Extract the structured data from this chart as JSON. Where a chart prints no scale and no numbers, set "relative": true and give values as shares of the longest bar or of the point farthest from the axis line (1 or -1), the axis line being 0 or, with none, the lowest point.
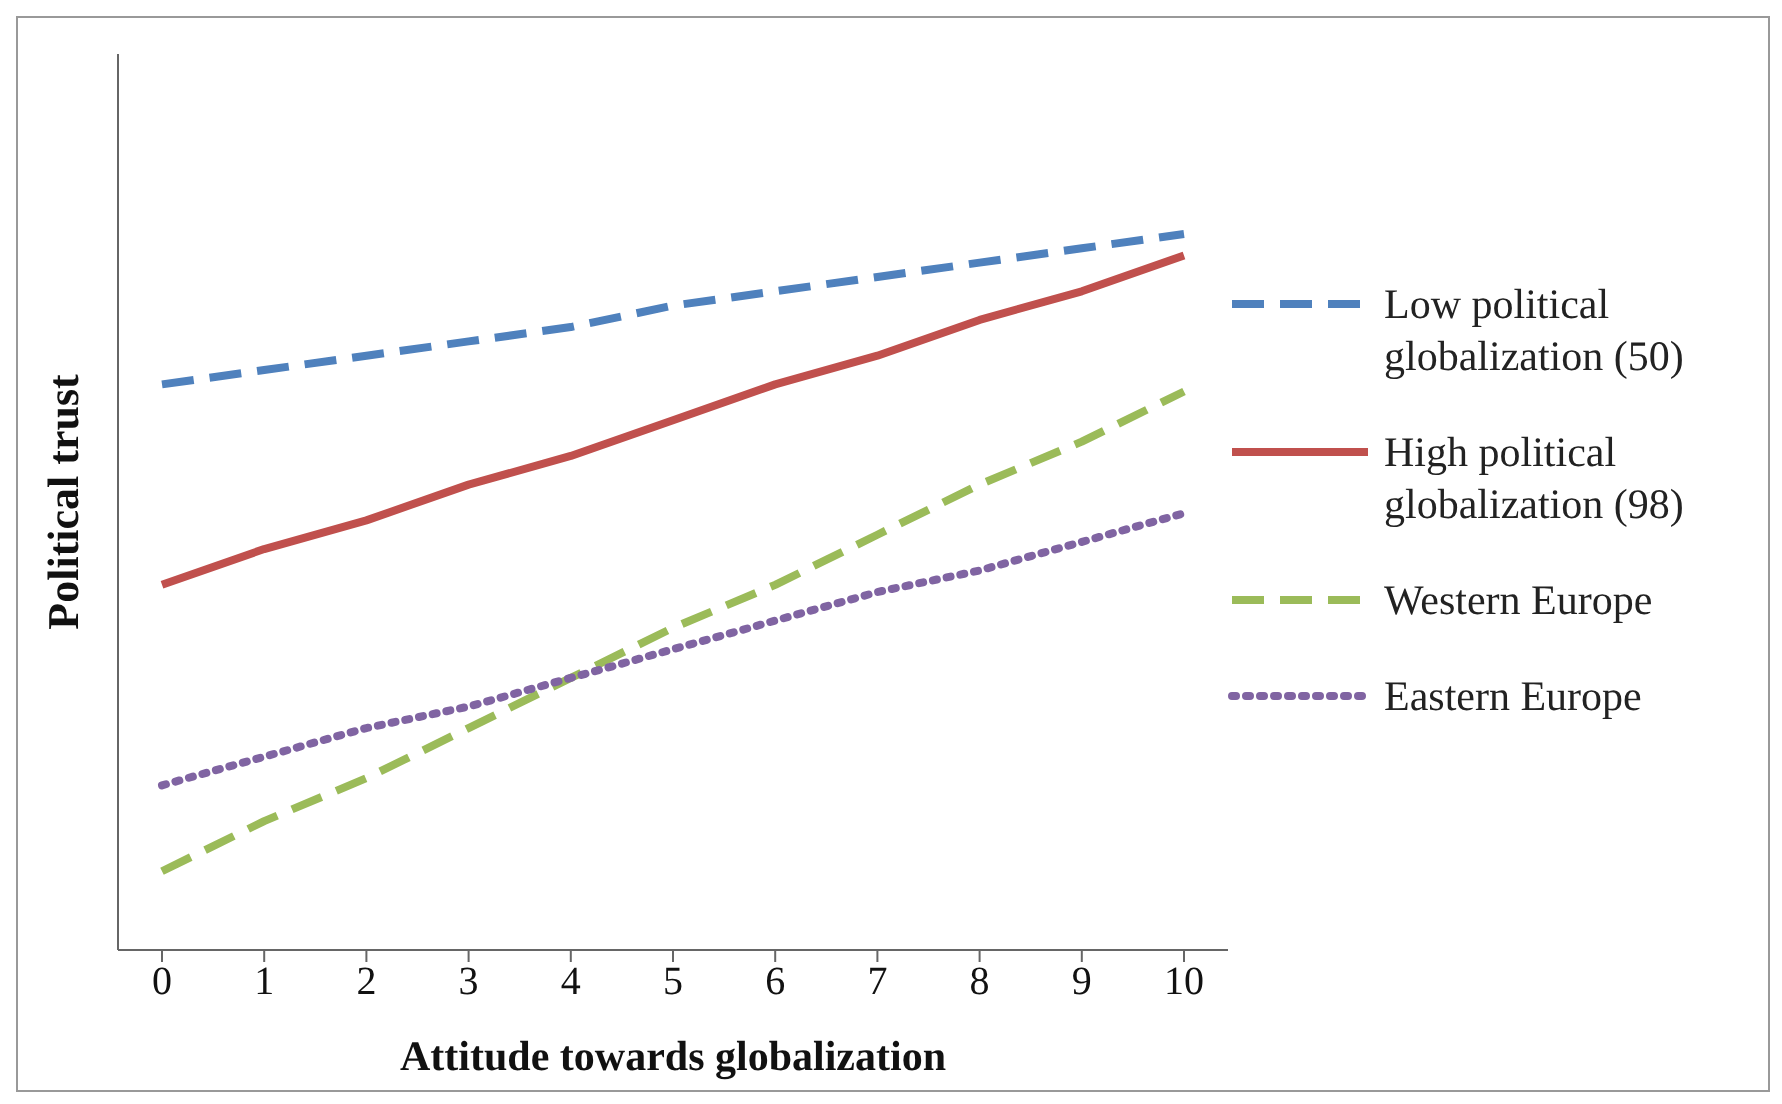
{
  "chart_data": {
    "type": "line",
    "relative": true,
    "xlabel": "Attitude towards globalization",
    "ylabel": "Political trust",
    "categories": [
      "0",
      "1",
      "2",
      "3",
      "4",
      "5",
      "6",
      "7",
      "8",
      "9",
      "10"
    ],
    "legend": "right",
    "grid": false,
    "marker": "none",
    "series": [
      {
        "name": "Low political globalization (50)",
        "color": "#4f81bd",
        "line_style": "dashed",
        "values": [
          0.79,
          0.81,
          0.83,
          0.85,
          0.87,
          0.9,
          0.92,
          0.94,
          0.96,
          0.98,
          1.0
        ]
      },
      {
        "name": "High political globalization (98)",
        "color": "#c0504d",
        "line_style": "solid",
        "values": [
          0.51,
          0.56,
          0.6,
          0.65,
          0.69,
          0.74,
          0.79,
          0.83,
          0.88,
          0.92,
          0.97
        ]
      },
      {
        "name": "Western Europe",
        "color": "#9bbb59",
        "line_style": "dashed",
        "values": [
          0.11,
          0.18,
          0.24,
          0.31,
          0.38,
          0.45,
          0.51,
          0.58,
          0.65,
          0.71,
          0.78
        ]
      },
      {
        "name": "Eastern Europe",
        "color": "#8064a2",
        "line_style": "dotted",
        "values": [
          0.23,
          0.27,
          0.31,
          0.34,
          0.38,
          0.42,
          0.46,
          0.5,
          0.53,
          0.57,
          0.61
        ]
      }
    ]
  }
}
